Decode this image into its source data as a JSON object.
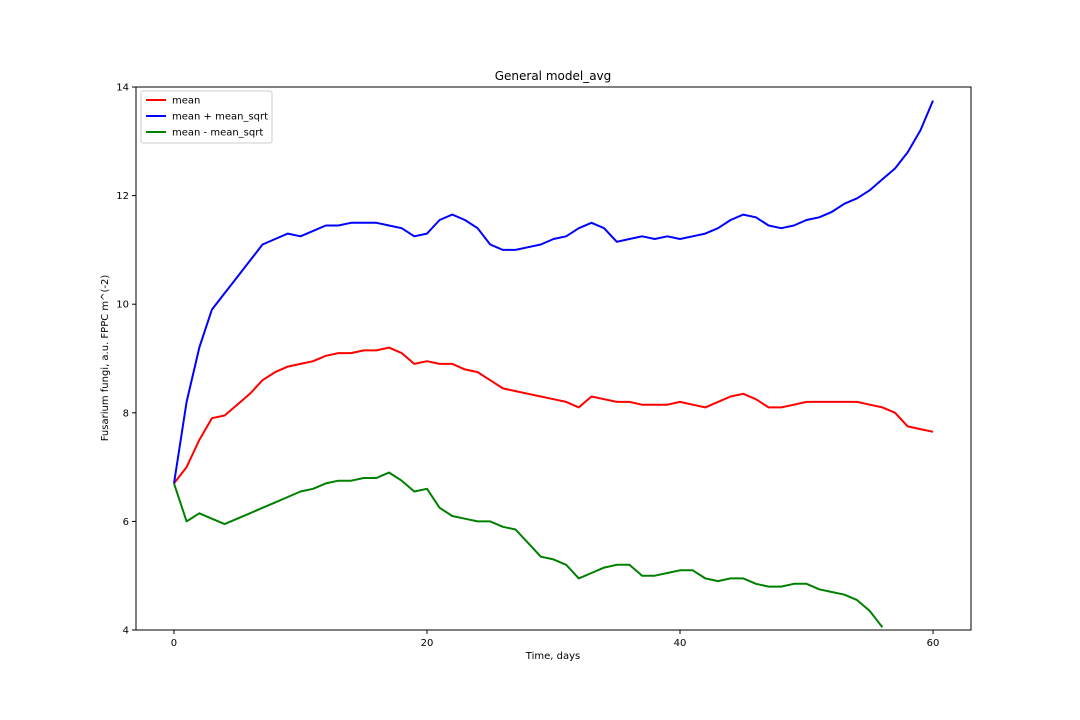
{
  "chart_data": {
    "type": "line",
    "title": "General model_avg",
    "xlabel": "Time, days",
    "ylabel": "Fusarium fungi, a.u. FPPC m^(-2)",
    "xlim": [
      -3,
      63
    ],
    "ylim": [
      4,
      14
    ],
    "xticks": [
      0,
      20,
      40,
      60
    ],
    "yticks": [
      4,
      6,
      8,
      10,
      12,
      14
    ],
    "grid": false,
    "legend": "top-left",
    "series": [
      {
        "name": "mean",
        "color": "#ff0000",
        "x": [
          0,
          1,
          2,
          3,
          4,
          5,
          6,
          7,
          8,
          9,
          10,
          11,
          12,
          13,
          14,
          15,
          16,
          17,
          18,
          19,
          20,
          21,
          22,
          23,
          24,
          25,
          26,
          27,
          28,
          29,
          30,
          31,
          32,
          33,
          34,
          35,
          36,
          37,
          38,
          39,
          40,
          41,
          42,
          43,
          44,
          45,
          46,
          47,
          48,
          49,
          50,
          51,
          52,
          53,
          54,
          55,
          56,
          57,
          58,
          59,
          60
        ],
        "y": [
          6.7,
          7.0,
          7.5,
          7.9,
          7.95,
          8.15,
          8.35,
          8.6,
          8.75,
          8.85,
          8.9,
          8.95,
          9.05,
          9.1,
          9.1,
          9.15,
          9.15,
          9.2,
          9.1,
          8.9,
          8.95,
          8.9,
          8.9,
          8.8,
          8.75,
          8.6,
          8.45,
          8.4,
          8.35,
          8.3,
          8.25,
          8.2,
          8.1,
          8.3,
          8.25,
          8.2,
          8.2,
          8.15,
          8.15,
          8.15,
          8.2,
          8.15,
          8.1,
          8.2,
          8.3,
          8.35,
          8.25,
          8.1,
          8.1,
          8.15,
          8.2,
          8.2,
          8.2,
          8.2,
          8.2,
          8.15,
          8.1,
          8.0,
          7.75,
          7.7,
          7.65
        ]
      },
      {
        "name": "mean + mean_sqrt",
        "color": "#0000ff",
        "x": [
          0,
          1,
          2,
          3,
          4,
          5,
          6,
          7,
          8,
          9,
          10,
          11,
          12,
          13,
          14,
          15,
          16,
          17,
          18,
          19,
          20,
          21,
          22,
          23,
          24,
          25,
          26,
          27,
          28,
          29,
          30,
          31,
          32,
          33,
          34,
          35,
          36,
          37,
          38,
          39,
          40,
          41,
          42,
          43,
          44,
          45,
          46,
          47,
          48,
          49,
          50,
          51,
          52,
          53,
          54,
          55,
          56,
          57,
          58,
          59,
          60
        ],
        "y": [
          6.7,
          8.2,
          9.2,
          9.9,
          10.2,
          10.5,
          10.8,
          11.1,
          11.2,
          11.3,
          11.25,
          11.35,
          11.45,
          11.45,
          11.5,
          11.5,
          11.5,
          11.45,
          11.4,
          11.25,
          11.3,
          11.55,
          11.65,
          11.55,
          11.4,
          11.1,
          11.0,
          11.0,
          11.05,
          11.1,
          11.2,
          11.25,
          11.4,
          11.5,
          11.4,
          11.15,
          11.2,
          11.25,
          11.2,
          11.25,
          11.2,
          11.25,
          11.3,
          11.4,
          11.55,
          11.65,
          11.6,
          11.45,
          11.4,
          11.45,
          11.55,
          11.6,
          11.7,
          11.85,
          11.95,
          12.1,
          12.3,
          12.5,
          12.8,
          13.2,
          13.75
        ]
      },
      {
        "name": "mean - mean_sqrt",
        "color": "#008000",
        "x": [
          0,
          1,
          2,
          3,
          4,
          5,
          6,
          7,
          8,
          9,
          10,
          11,
          12,
          13,
          14,
          15,
          16,
          17,
          18,
          19,
          20,
          21,
          22,
          23,
          24,
          25,
          26,
          27,
          28,
          29,
          30,
          31,
          32,
          33,
          34,
          35,
          36,
          37,
          38,
          39,
          40,
          41,
          42,
          43,
          44,
          45,
          46,
          47,
          48,
          49,
          50,
          51,
          52,
          53,
          54,
          55,
          56
        ],
        "y": [
          6.7,
          6.0,
          6.15,
          6.05,
          5.95,
          6.05,
          6.15,
          6.25,
          6.35,
          6.45,
          6.55,
          6.6,
          6.7,
          6.75,
          6.75,
          6.8,
          6.8,
          6.9,
          6.75,
          6.55,
          6.6,
          6.25,
          6.1,
          6.05,
          6.0,
          6.0,
          5.9,
          5.85,
          5.6,
          5.35,
          5.3,
          5.2,
          4.95,
          5.05,
          5.15,
          5.2,
          5.2,
          5.0,
          5.0,
          5.05,
          5.1,
          5.1,
          4.95,
          4.9,
          4.95,
          4.95,
          4.85,
          4.8,
          4.8,
          4.85,
          4.85,
          4.75,
          4.7,
          4.65,
          4.55,
          4.35,
          4.05
        ]
      }
    ]
  }
}
